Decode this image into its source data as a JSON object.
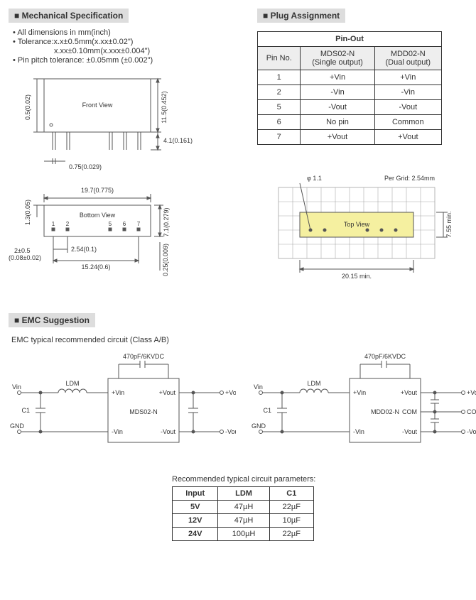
{
  "mech": {
    "title": "Mechanical Specification",
    "bullets": [
      "All dimensions in mm(inch)",
      "Tolerance:x.x±0.5mm(x.xx±0.02\")",
      "x.xx±0.10mm(x.xxx±0.004\")",
      "Pin pitch tolerance: ±0.05mm (±0.002\")"
    ],
    "front_view": "Front  View",
    "bottom_view": "Bottom View",
    "top_view": "Top View",
    "dims": {
      "height": "11.5(0.452)",
      "pin_len": "4.1(0.161)",
      "pin_w": "0.75(0.029)",
      "side_off": "0.5(0.02)",
      "width": "19.7(0.775)",
      "depth": "7.1(0.279)",
      "edge": "1.3(0.05)",
      "pitch": "2.54(0.1)",
      "span": "15.24(0.6)",
      "thick": "0.25(0.009)",
      "front_off": "2±0.5",
      "front_off2": "(0.08±0.02)",
      "phi": "φ 1.1",
      "grid": "Per Grid: 2.54mm",
      "pcb_w": "20.15 min.",
      "pcb_h": "7.55 min."
    },
    "pins": [
      "1",
      "2",
      "5",
      "6",
      "7"
    ]
  },
  "plug": {
    "title": "Plug Assignment",
    "table_title": "Pin-Out",
    "headers": [
      "Pin No.",
      "MDS02-N\n(Single output)",
      "MDD02-N\n(Dual output)"
    ],
    "rows": [
      [
        "1",
        "+Vin",
        "+Vin"
      ],
      [
        "2",
        "-Vin",
        "-Vin"
      ],
      [
        "5",
        "-Vout",
        "-Vout"
      ],
      [
        "6",
        "No pin",
        "Common"
      ],
      [
        "7",
        "+Vout",
        "+Vout"
      ]
    ]
  },
  "emc": {
    "title": "EMC Suggestion",
    "subtitle": "EMC typical recommended circuit (Class A/B)",
    "cap_label": "470pF/6KVDC",
    "ldm": "LDM",
    "c1": "C1",
    "vin": "Vin",
    "gnd": "GND",
    "vin_p": "+Vin",
    "vin_n": "-Vin",
    "vout_p": "+Vout",
    "vout_n": "-Vout",
    "com": "COM",
    "block1": "MDS02-N",
    "block2": "MDD02-N"
  },
  "params": {
    "title": "Recommended typical circuit parameters:",
    "headers": [
      "Input",
      "LDM",
      "C1"
    ],
    "rows": [
      [
        "5V",
        "47µH",
        "22µF"
      ],
      [
        "12V",
        "47µH",
        "10µF"
      ],
      [
        "24V",
        "100µH",
        "22µF"
      ]
    ]
  },
  "colors": {
    "highlight": "#f5f0a0",
    "line": "#555"
  }
}
